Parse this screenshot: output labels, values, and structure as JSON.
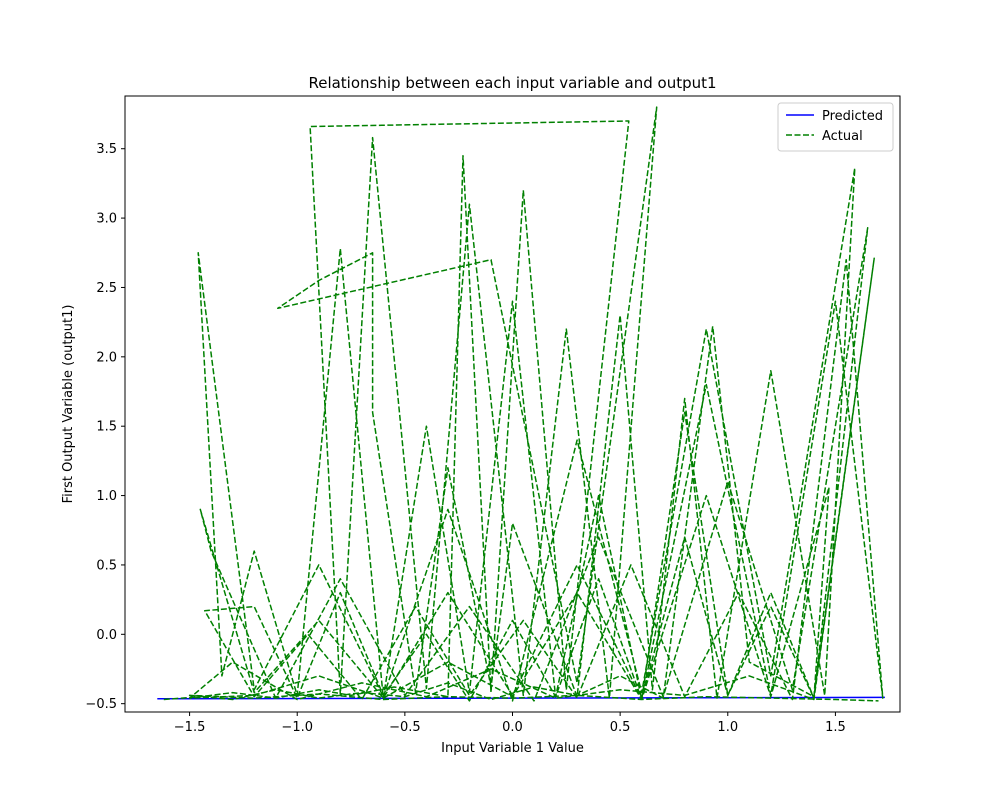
{
  "chart_data": {
    "type": "line",
    "title": "Relationship between each input variable and output1",
    "xlabel": "Input Variable 1 Value",
    "ylabel": "First Output Variable (output1)",
    "xlim": [
      -1.8,
      1.8
    ],
    "ylim": [
      -0.56,
      3.88
    ],
    "xticks": [
      -1.5,
      -1.0,
      -0.5,
      0.0,
      0.5,
      1.0,
      1.5
    ],
    "xtick_labels": [
      "−1.5",
      "−1.0",
      "−0.5",
      "0.0",
      "0.5",
      "1.0",
      "1.5"
    ],
    "yticks": [
      -0.5,
      0.0,
      0.5,
      1.0,
      1.5,
      2.0,
      2.5,
      3.0,
      3.5
    ],
    "ytick_labels": [
      "−0.5",
      "0.0",
      "0.5",
      "1.0",
      "1.5",
      "2.0",
      "2.5",
      "3.0",
      "3.5"
    ],
    "grid": false,
    "legend_position": "top-right",
    "series": [
      {
        "name": "Predicted",
        "color": "#0000ff",
        "style": "solid",
        "x": [
          -1.65,
          1.73
        ],
        "y": [
          -0.465,
          -0.455
        ]
      },
      {
        "name": "Actual",
        "color": "#008000",
        "style": "dashed",
        "x": [
          -1.62,
          -1.45,
          -1.3,
          -1.1,
          -0.9,
          -0.75,
          -0.55,
          -0.3,
          -0.23,
          -0.1,
          0.05,
          0.25,
          0.54,
          -0.94,
          -0.8,
          -0.65,
          -0.4,
          -0.2,
          0.05,
          0.25,
          0.45,
          0.67,
          0.3,
          -0.1,
          -1.09,
          -0.9,
          -0.65,
          -0.65,
          -0.45,
          -0.3,
          -0.1,
          0.0,
          0.3,
          0.5,
          0.65,
          0.8,
          0.95,
          1.2,
          1.45,
          1.59,
          1.2,
          0.9,
          0.6,
          0.3,
          0.0,
          -0.3,
          -0.6,
          -0.9,
          -1.2,
          -1.46,
          -1.35,
          -1.2,
          -1.0,
          -0.8,
          -0.6,
          -0.4,
          -0.2,
          0.0,
          0.2,
          0.4,
          0.6,
          0.8,
          1.0,
          1.2,
          1.4,
          1.65,
          1.3,
          1.0,
          0.7,
          0.4,
          0.1,
          -0.2,
          -0.5,
          -0.8,
          -1.1,
          -1.4,
          -1.45,
          -1.2,
          -0.9,
          -0.6,
          -0.3,
          0.0,
          0.3,
          0.6,
          0.9,
          1.2,
          1.47,
          1.4,
          1.2,
          1.0,
          0.8,
          0.6,
          0.4,
          0.2,
          0.0,
          -0.2,
          -0.4,
          -0.6,
          -0.8,
          -1.0,
          -1.2,
          -1.43,
          -1.2,
          -0.95,
          -0.7,
          -0.45,
          -0.2,
          0.05,
          0.3,
          0.55,
          0.8,
          1.05,
          1.3,
          1.55,
          1.72,
          1.5,
          1.2,
          0.9,
          0.6,
          0.3,
          0.0,
          -0.3,
          -0.6,
          -0.9,
          -1.2,
          -1.5,
          -1.3,
          -1.0,
          -0.7,
          -0.4,
          -0.1,
          0.2,
          0.5,
          0.8,
          1.1,
          1.4,
          1.68,
          1.4,
          1.1,
          0.93,
          0.7,
          0.5,
          0.3,
          0.1,
          -0.1,
          -0.3,
          -0.5,
          -0.7,
          -0.9,
          -1.1,
          -1.3,
          -1.5,
          -1.2,
          -0.9,
          -0.6,
          -0.3,
          0.0,
          0.3,
          0.6,
          0.9,
          1.2,
          1.5,
          1.7
        ],
        "y": [
          -0.47,
          -0.45,
          -0.42,
          -0.46,
          -0.4,
          -0.44,
          -0.38,
          -0.45,
          3.45,
          -0.42,
          3.2,
          -0.4,
          3.7,
          3.66,
          -0.43,
          3.58,
          -0.39,
          3.1,
          -0.44,
          2.2,
          -0.46,
          3.8,
          -0.35,
          2.7,
          2.35,
          2.55,
          2.75,
          1.6,
          -0.42,
          1.2,
          -0.38,
          0.8,
          -0.45,
          2.3,
          -0.4,
          1.7,
          -0.46,
          1.9,
          -0.44,
          3.36,
          -0.3,
          2.2,
          -0.42,
          1.4,
          -0.48,
          0.9,
          -0.45,
          0.5,
          -0.4,
          2.75,
          -0.3,
          0.6,
          -0.44,
          2.78,
          -0.46,
          1.5,
          -0.42,
          2.4,
          -0.45,
          1.0,
          -0.47,
          1.6,
          -0.44,
          0.3,
          -0.46,
          2.93,
          -0.4,
          1.1,
          -0.45,
          0.7,
          -0.48,
          0.2,
          -0.44,
          0.4,
          -0.46,
          0.6,
          0.9,
          -0.42,
          0.1,
          -0.46,
          0.3,
          -0.44,
          0.5,
          -0.47,
          1.0,
          -0.45,
          1.06,
          -0.46,
          0.2,
          -0.44,
          0.7,
          -0.47,
          0.4,
          -0.45,
          0.1,
          -0.48,
          0.0,
          -0.44,
          0.3,
          -0.46,
          0.2,
          0.17,
          -0.45,
          0.0,
          -0.47,
          0.2,
          -0.44,
          0.1,
          -0.46,
          0.5,
          -0.45,
          0.3,
          -0.47,
          2.7,
          -0.46,
          2.4,
          -0.44,
          1.8,
          -0.47,
          0.3,
          -0.45,
          -0.2,
          -0.46,
          -0.3,
          -0.44,
          -0.46,
          -0.2,
          -0.47,
          -0.35,
          -0.45,
          -0.25,
          -0.46,
          -0.4,
          -0.44,
          -0.3,
          -0.47,
          2.71,
          -0.45,
          -0.2,
          2.22,
          -0.46,
          -0.3,
          -0.44,
          -0.38,
          -0.47,
          -0.35,
          -0.45,
          -0.42,
          -0.46,
          -0.4,
          -0.47,
          -0.44,
          -0.46,
          -0.43,
          -0.47,
          -0.45,
          -0.46,
          -0.44,
          -0.47,
          -0.45,
          -0.46,
          -0.47,
          -0.48
        ]
      }
    ]
  }
}
